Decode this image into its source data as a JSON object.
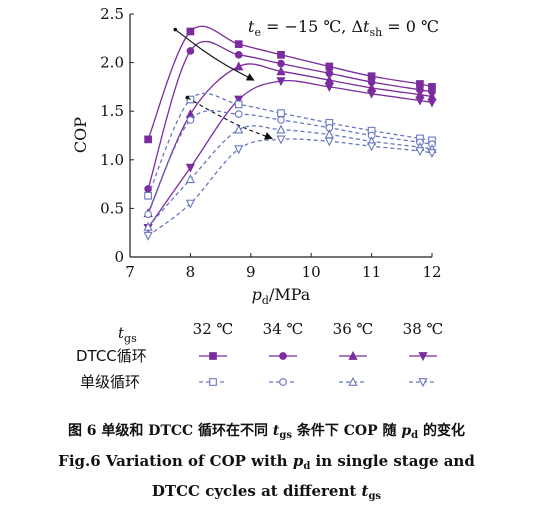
{
  "chart_data": {
    "type": "line",
    "xlabel": "p_d/MPa",
    "ylabel": "COP",
    "xlim": [
      7,
      12
    ],
    "ylim": [
      0,
      2.5
    ],
    "x_ticks": [
      7,
      8,
      9,
      10,
      11,
      12
    ],
    "y_ticks": [
      0,
      0.5,
      1.0,
      1.5,
      2.0,
      2.5
    ],
    "y_tick_labels": [
      "0",
      "0.5",
      "1.0",
      "1.5",
      "2.0",
      "2.5"
    ],
    "annotation": {
      "text": "t_e = −15 ℃, Δt_sh = 0 ℃",
      "parts": {
        "t": "t",
        "e_sub": "e",
        "eq1": " = −15 ℃, Δ",
        "t2": "t",
        "sh_sub": "sh",
        "eq2": " = 0 ℃"
      }
    },
    "legend": {
      "header_t": "t",
      "header_sub": "gs",
      "temperatures": [
        "32 ℃",
        "34 ℃",
        "36 ℃",
        "38 ℃"
      ],
      "row_labels": [
        "DTCC循环",
        "单级循环"
      ]
    },
    "grid": false,
    "series": [
      {
        "cycle": "DTCC",
        "tgs": "32 ℃",
        "color": "#7b2d9e",
        "marker": "square",
        "filled": true,
        "dashed": false,
        "x": [
          7.3,
          8.0,
          8.8,
          9.5,
          10.3,
          11.0,
          11.8,
          12.0
        ],
        "y": [
          1.21,
          2.32,
          2.19,
          2.08,
          1.96,
          1.86,
          1.78,
          1.75
        ]
      },
      {
        "cycle": "DTCC",
        "tgs": "34 ℃",
        "color": "#7b2d9e",
        "marker": "circle",
        "filled": true,
        "dashed": false,
        "x": [
          7.3,
          8.0,
          8.8,
          9.5,
          10.3,
          11.0,
          11.8,
          12.0
        ],
        "y": [
          0.7,
          2.12,
          2.08,
          1.99,
          1.89,
          1.8,
          1.72,
          1.7
        ]
      },
      {
        "cycle": "DTCC",
        "tgs": "36 ℃",
        "color": "#7b2d9e",
        "marker": "triangle",
        "filled": true,
        "dashed": false,
        "x": [
          7.3,
          8.0,
          8.8,
          9.5,
          10.3,
          11.0,
          11.8,
          12.0
        ],
        "y": [
          0.45,
          1.47,
          1.96,
          1.91,
          1.82,
          1.74,
          1.67,
          1.65
        ]
      },
      {
        "cycle": "DTCC",
        "tgs": "38 ℃",
        "color": "#7b2d9e",
        "marker": "triangle-down",
        "filled": true,
        "dashed": false,
        "x": [
          7.3,
          8.0,
          8.8,
          9.5,
          10.3,
          11.0,
          11.8,
          12.0
        ],
        "y": [
          0.3,
          0.92,
          1.62,
          1.81,
          1.75,
          1.68,
          1.61,
          1.59
        ]
      },
      {
        "cycle": "single",
        "tgs": "32 ℃",
        "color": "#6878c0",
        "marker": "square",
        "filled": false,
        "dashed": true,
        "x": [
          7.3,
          8.0,
          8.8,
          9.5,
          10.3,
          11.0,
          11.8,
          12.0
        ],
        "y": [
          0.63,
          1.62,
          1.57,
          1.48,
          1.38,
          1.3,
          1.22,
          1.2
        ]
      },
      {
        "cycle": "single",
        "tgs": "34 ℃",
        "color": "#6878c0",
        "marker": "circle",
        "filled": false,
        "dashed": true,
        "x": [
          7.3,
          8.0,
          8.8,
          9.5,
          10.3,
          11.0,
          11.8,
          12.0
        ],
        "y": [
          0.44,
          1.41,
          1.47,
          1.41,
          1.33,
          1.25,
          1.18,
          1.16
        ]
      },
      {
        "cycle": "single",
        "tgs": "36 ℃",
        "color": "#6878c0",
        "marker": "triangle",
        "filled": false,
        "dashed": true,
        "x": [
          7.3,
          8.0,
          8.8,
          9.5,
          10.3,
          11.0,
          11.8,
          12.0
        ],
        "y": [
          0.31,
          0.8,
          1.31,
          1.31,
          1.26,
          1.19,
          1.13,
          1.11
        ]
      },
      {
        "cycle": "single",
        "tgs": "38 ℃",
        "color": "#6878c0",
        "marker": "triangle-down",
        "filled": false,
        "dashed": true,
        "x": [
          7.3,
          8.0,
          8.8,
          9.5,
          10.3,
          11.0,
          11.8,
          12.0
        ],
        "y": [
          0.22,
          0.55,
          1.11,
          1.21,
          1.19,
          1.14,
          1.09,
          1.07
        ]
      }
    ],
    "peak_trend_dtcc": {
      "x": [
        7.75,
        8.2,
        8.6,
        9.05
      ],
      "y": [
        2.34,
        2.13,
        1.97,
        1.82
      ]
    },
    "peak_trend_single": {
      "x": [
        7.95,
        8.4,
        8.85,
        9.35
      ],
      "y": [
        1.64,
        1.48,
        1.34,
        1.22
      ]
    }
  },
  "captions": {
    "cn_a": "图 6 单级和 DTCC 循环在不同 ",
    "cn_t": "t",
    "cn_t_sub": "gs",
    "cn_b": " 条件下 COP 随 ",
    "cn_p": "p",
    "cn_p_sub": "d",
    "cn_c": " 的变化",
    "en1_a": "Fig.6 Variation of COP with ",
    "en1_p": "p",
    "en1_p_sub": "d",
    "en1_b": " in single stage and",
    "en2_a": "DTCC cycles at different ",
    "en2_t": "t",
    "en2_t_sub": "gs"
  }
}
